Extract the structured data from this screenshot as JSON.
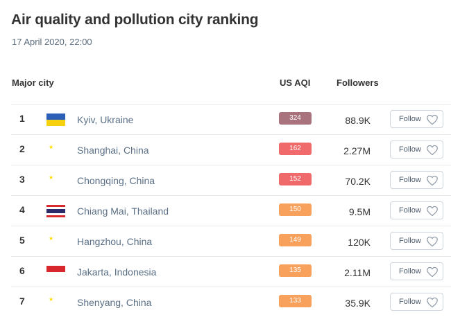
{
  "header": {
    "title": "Air quality and pollution city ranking",
    "date": "17 April 2020, 22:00"
  },
  "columns": {
    "city": "Major city",
    "aqi": "US AQI",
    "followers": "Followers"
  },
  "follow_label": "Follow",
  "rows": [
    {
      "rank": "1",
      "city": "Kyiv, Ukraine",
      "flag": "ukraine-flag-icon",
      "aqi": "324",
      "aqi_color": "#a8737c",
      "followers": "88.9K"
    },
    {
      "rank": "2",
      "city": "Shanghai, China",
      "flag": "china-flag-icon",
      "aqi": "162",
      "aqi_color": "#f06a6c",
      "followers": "2.27M"
    },
    {
      "rank": "3",
      "city": "Chongqing, China",
      "flag": "china-flag-icon",
      "aqi": "152",
      "aqi_color": "#f06a6c",
      "followers": "70.2K"
    },
    {
      "rank": "4",
      "city": "Chiang Mai, Thailand",
      "flag": "thailand-flag-icon",
      "aqi": "150",
      "aqi_color": "#f7a15c",
      "followers": "9.5M"
    },
    {
      "rank": "5",
      "city": "Hangzhou, China",
      "flag": "china-flag-icon",
      "aqi": "149",
      "aqi_color": "#f7a15c",
      "followers": "120K"
    },
    {
      "rank": "6",
      "city": "Jakarta, Indonesia",
      "flag": "indonesia-flag-icon",
      "aqi": "135",
      "aqi_color": "#f7a15c",
      "followers": "2.11M"
    },
    {
      "rank": "7",
      "city": "Shenyang, China",
      "flag": "china-flag-icon",
      "aqi": "133",
      "aqi_color": "#f7a15c",
      "followers": "35.9K"
    }
  ]
}
